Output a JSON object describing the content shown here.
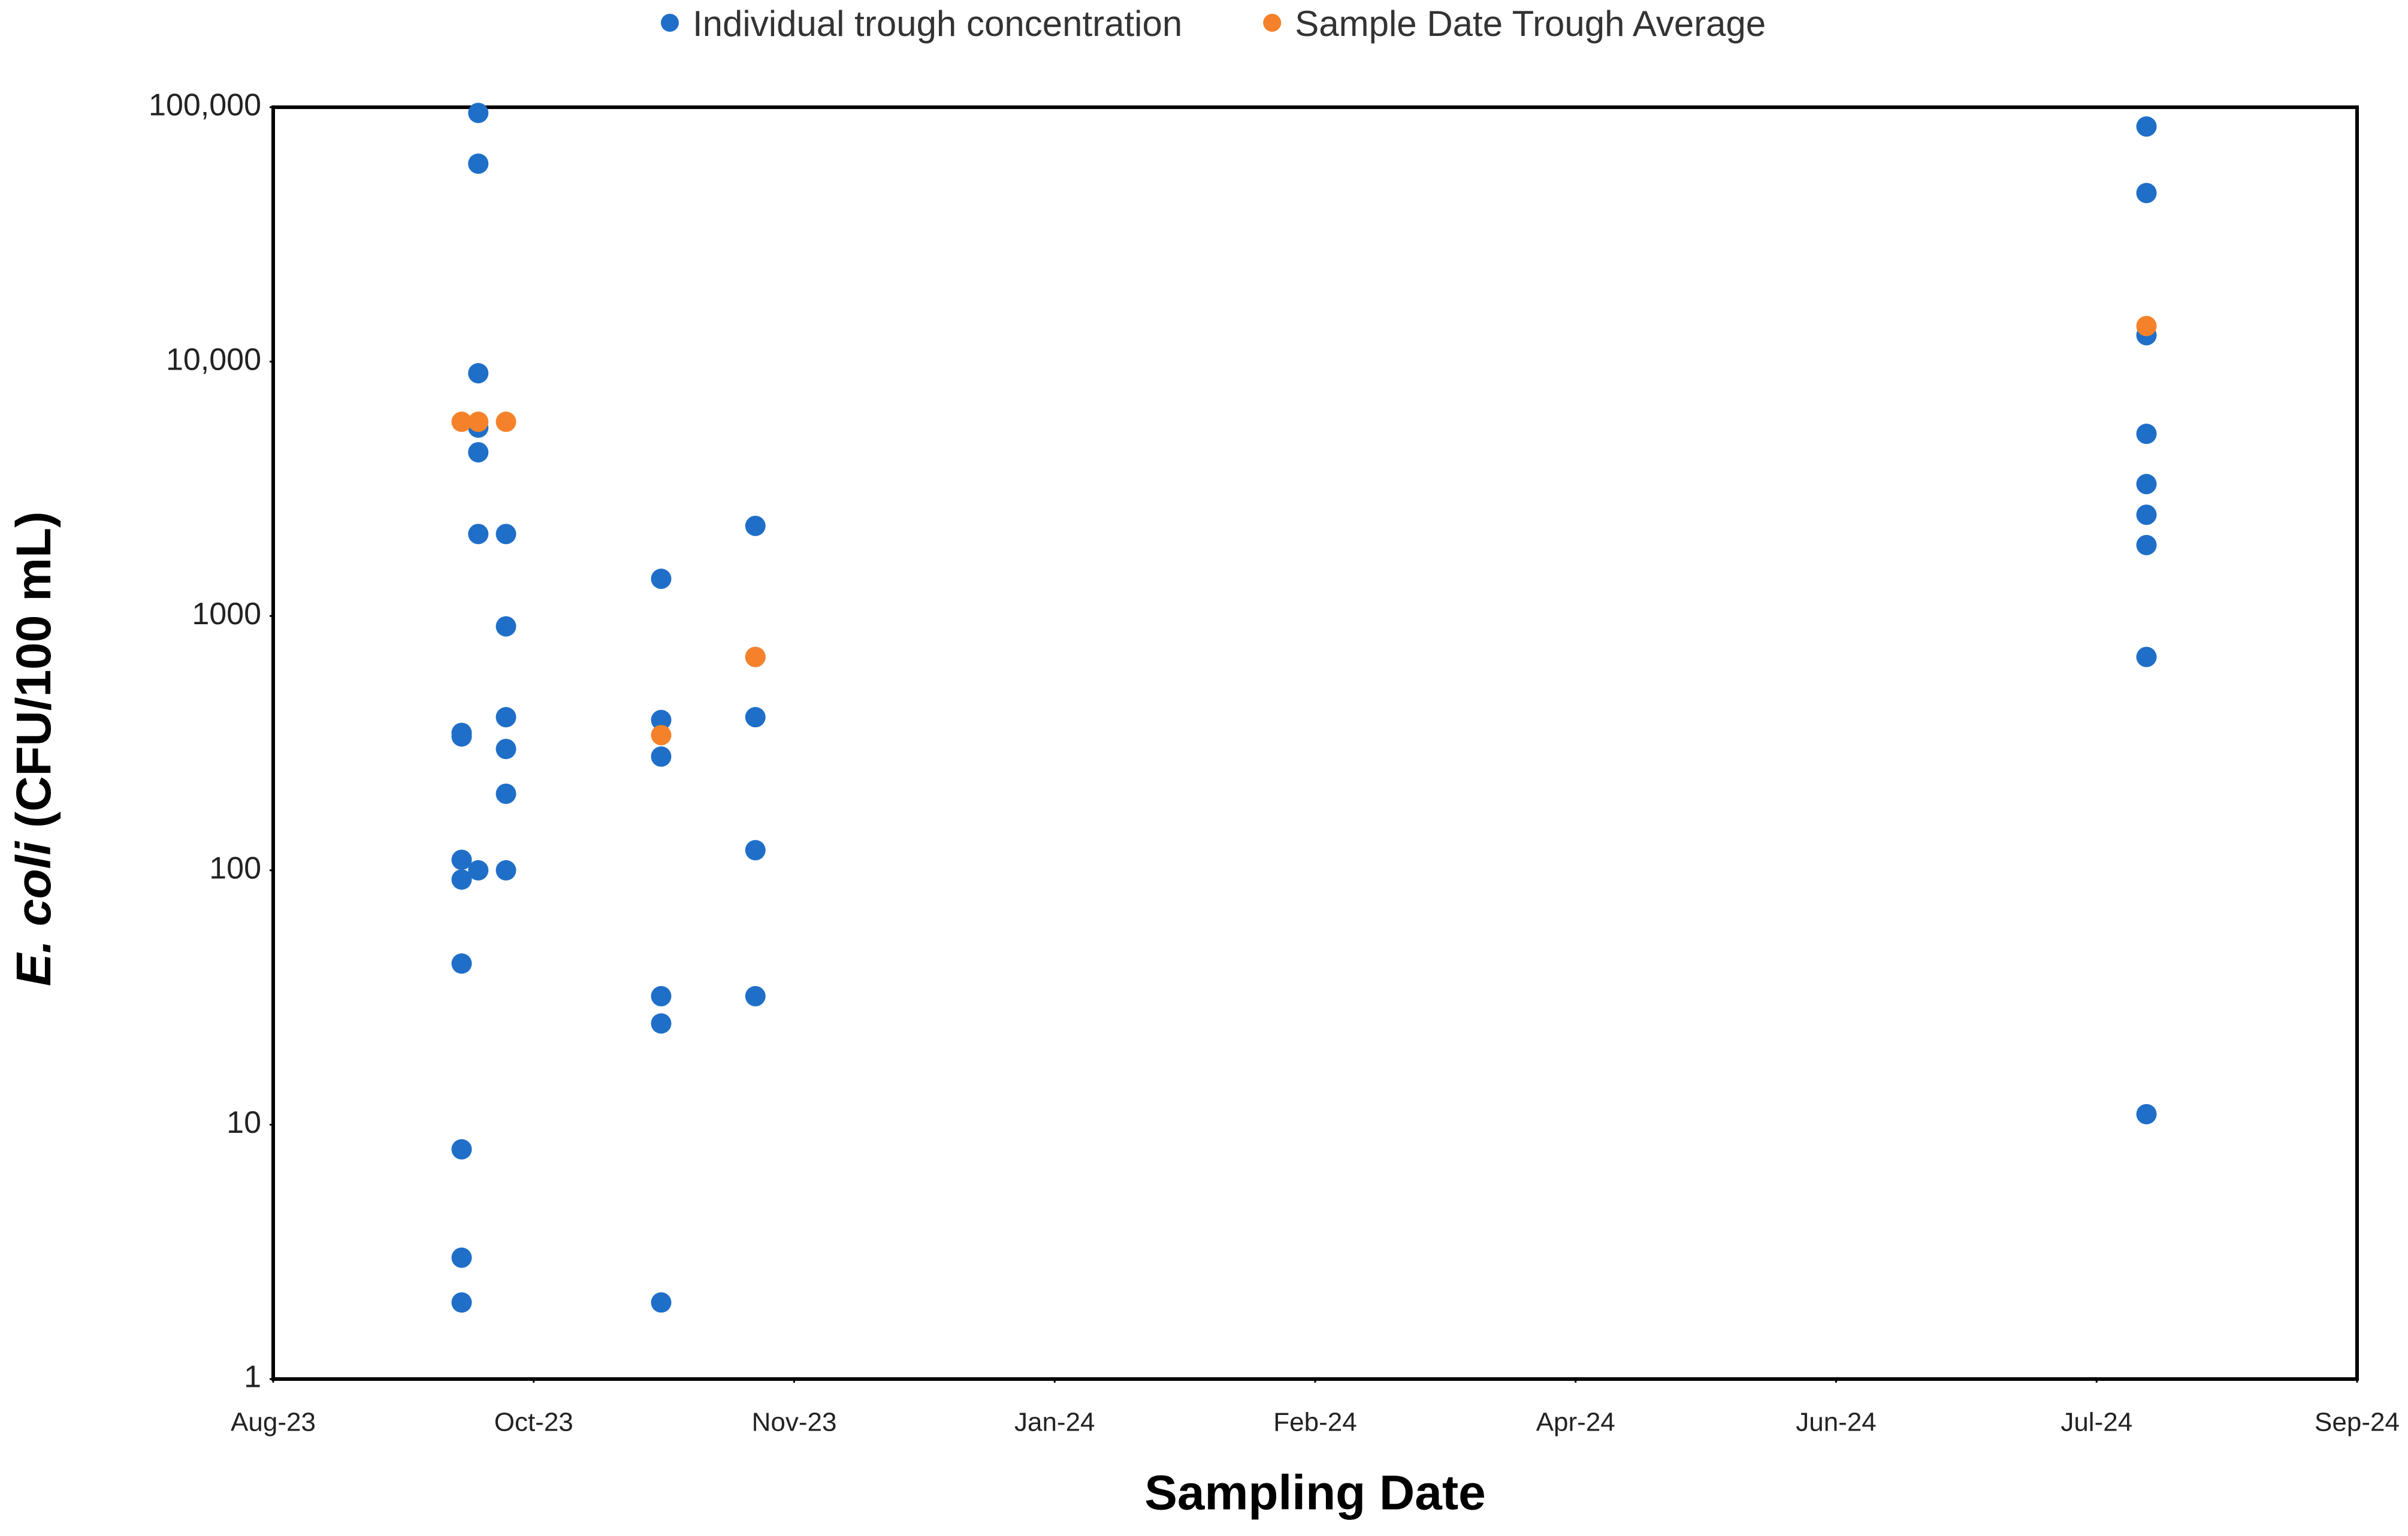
{
  "chart_data": {
    "type": "scatter",
    "xlabel": "Sampling Date",
    "ylabel": {
      "italic": "E. coli",
      "rest": "(CFU/100 mL)"
    },
    "log_y": true,
    "grid": false,
    "legend": "top",
    "xlim": [
      45163,
      45539
    ],
    "xticks": [
      {
        "value": 45163,
        "label": "Aug-23"
      },
      {
        "value": 45210,
        "label": "Oct-23"
      },
      {
        "value": 45257,
        "label": "Nov-23"
      },
      {
        "value": 45304,
        "label": "Jan-24"
      },
      {
        "value": 45351,
        "label": "Feb-24"
      },
      {
        "value": 45398,
        "label": "Apr-24"
      },
      {
        "value": 45445,
        "label": "Jun-24"
      },
      {
        "value": 45492,
        "label": "Jul-24"
      },
      {
        "value": 45539,
        "label": "Sep-24"
      }
    ],
    "ylim": [
      1,
      100000
    ],
    "yticks": [
      1,
      10,
      100,
      1000,
      {
        "value": 10000,
        "label": "10,000"
      },
      {
        "value": 100000,
        "label": "100,000"
      }
    ],
    "series": [
      {
        "name": "Individual trough concentration",
        "color": "#1f6fc8",
        "x": [
          45197,
          45197,
          45197,
          45197,
          45197,
          45197,
          45197,
          45197,
          45200,
          45200,
          45200,
          45200,
          45200,
          45200,
          45200,
          45205,
          45205,
          45205,
          45205,
          45205,
          45205,
          45233,
          45233,
          45233,
          45233,
          45233,
          45233,
          45250,
          45250,
          45250,
          45250,
          45250,
          45501,
          45501,
          45501,
          45501,
          45501,
          45501,
          45501,
          45501,
          45501
        ],
        "values": [
          347,
          336,
          110,
          92,
          43,
          8,
          3,
          2,
          95000,
          60000,
          9000,
          5500,
          4400,
          2100,
          100,
          2100,
          910,
          400,
          300,
          200,
          100,
          1400,
          390,
          280,
          32,
          25,
          2,
          2260,
          400,
          120,
          32,
          690,
          84000,
          46000,
          12700,
          5200,
          3300,
          2500,
          1900,
          690,
          11
        ]
      },
      {
        "name": "Sample Date Trough Average",
        "color": "#f5822a",
        "x": [
          45197,
          45200,
          45205,
          45233,
          45250,
          45501
        ],
        "values": [
          5800,
          5800,
          5800,
          340,
          690,
          13800
        ]
      }
    ]
  }
}
